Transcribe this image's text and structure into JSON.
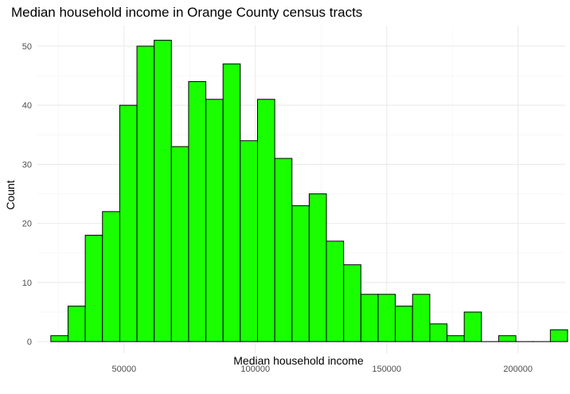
{
  "chart_data": {
    "type": "bar",
    "title": "Median household income in Orange County census tracts",
    "xlabel": "Median household income",
    "ylabel": "Count",
    "bar_color": "#1aff00",
    "bar_outline_color": "#000000",
    "bin_width": 6560,
    "bin_start": 22100,
    "values": [
      1,
      6,
      18,
      22,
      40,
      50,
      51,
      33,
      44,
      41,
      47,
      34,
      41,
      31,
      23,
      25,
      17,
      13,
      8,
      8,
      6,
      8,
      3,
      1,
      5,
      0,
      1,
      0,
      0,
      2
    ],
    "xlim": [
      17000,
      218000
    ],
    "ylim": [
      -2,
      53.5
    ],
    "x_ticks": [
      50000,
      100000,
      150000,
      200000
    ],
    "x_tick_labels": [
      "50000",
      "100000",
      "150000",
      "200000"
    ],
    "y_ticks": [
      0,
      10,
      20,
      30,
      40,
      50
    ],
    "y_tick_labels": [
      "0",
      "10",
      "20",
      "30",
      "40",
      "50"
    ],
    "grid": true,
    "legend": "none"
  }
}
